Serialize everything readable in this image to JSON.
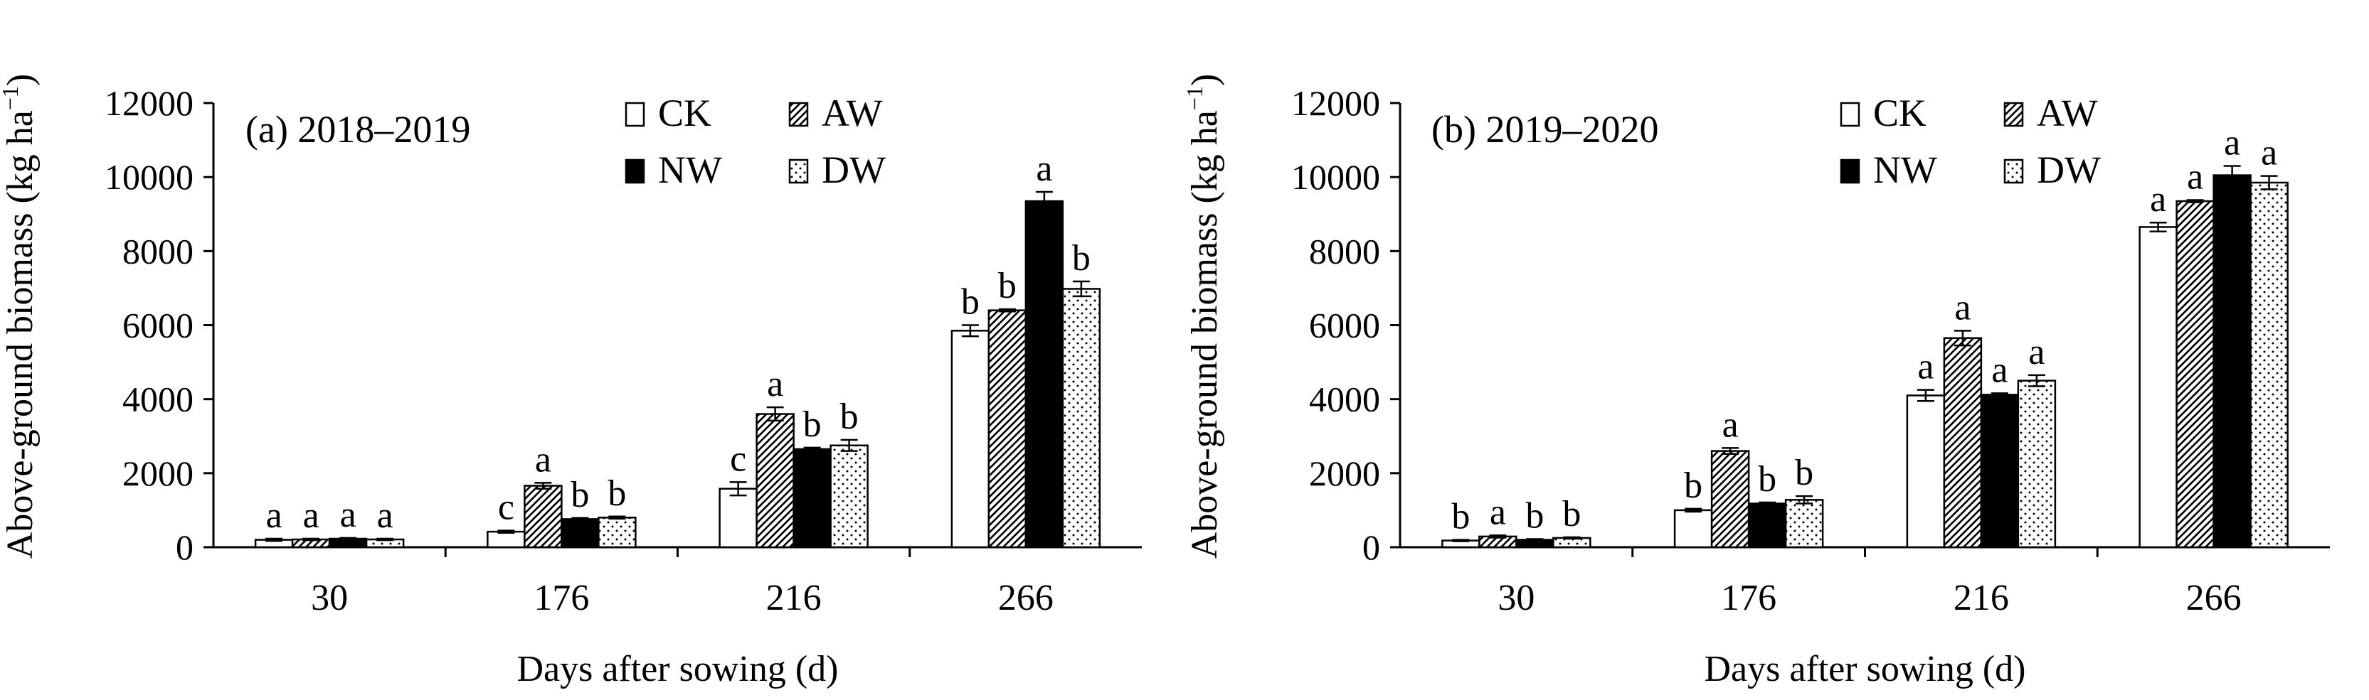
{
  "chart_data": [
    {
      "type": "bar",
      "panel_label": "(a) 2018–2019",
      "xlabel": "Days after sowing (d)",
      "ylabel": "Above-ground biomass (kg ha",
      "ylabel_sup": "−1",
      "ylabel_close": ")",
      "ylim": [
        0,
        12000
      ],
      "yticks": [
        "0",
        "2000",
        "4000",
        "6000",
        "8000",
        "10000",
        "12000"
      ],
      "categories": [
        "30",
        "176",
        "216",
        "266"
      ],
      "legend_position": "top-right",
      "series": [
        {
          "name": "CK",
          "values": [
            200,
            420,
            1580,
            5850
          ],
          "errors": [
            30,
            30,
            180,
            150
          ],
          "letters": [
            "a",
            "c",
            "c",
            "b"
          ]
        },
        {
          "name": "AW",
          "values": [
            210,
            1660,
            3600,
            6400
          ],
          "errors": [
            20,
            80,
            180,
            30
          ],
          "letters": [
            "a",
            "a",
            "a",
            "b"
          ]
        },
        {
          "name": "NW",
          "values": [
            230,
            760,
            2650,
            9350
          ],
          "errors": [
            20,
            30,
            40,
            250
          ],
          "letters": [
            "a",
            "b",
            "b",
            "a"
          ]
        },
        {
          "name": "DW",
          "values": [
            210,
            800,
            2750,
            6980
          ],
          "errors": [
            20,
            30,
            150,
            200
          ],
          "letters": [
            "a",
            "b",
            "b",
            "b"
          ]
        }
      ]
    },
    {
      "type": "bar",
      "panel_label": "(b) 2019–2020",
      "xlabel": "Days after sowing (d)",
      "ylabel": "Above-ground biomass (kg ha",
      "ylabel_sup": "−1",
      "ylabel_close": ")",
      "ylim": [
        0,
        12000
      ],
      "yticks": [
        "0",
        "2000",
        "4000",
        "6000",
        "8000",
        "10000",
        "12000"
      ],
      "categories": [
        "30",
        "176",
        "216",
        "266"
      ],
      "legend_position": "top-right",
      "series": [
        {
          "name": "CK",
          "values": [
            180,
            1000,
            4100,
            8650
          ],
          "errors": [
            20,
            40,
            150,
            120
          ],
          "letters": [
            "b",
            "b",
            "a",
            "a"
          ]
        },
        {
          "name": "AW",
          "values": [
            290,
            2600,
            5650,
            9350
          ],
          "errors": [
            30,
            80,
            200,
            30
          ],
          "letters": [
            "a",
            "a",
            "a",
            "a"
          ]
        },
        {
          "name": "NW",
          "values": [
            200,
            1180,
            4120,
            10050
          ],
          "errors": [
            20,
            30,
            40,
            250
          ],
          "letters": [
            "b",
            "b",
            "a",
            "a"
          ]
        },
        {
          "name": "DW",
          "values": [
            250,
            1280,
            4500,
            9850
          ],
          "errors": [
            20,
            100,
            150,
            180
          ],
          "letters": [
            "b",
            "b",
            "a",
            "a"
          ]
        }
      ]
    }
  ]
}
